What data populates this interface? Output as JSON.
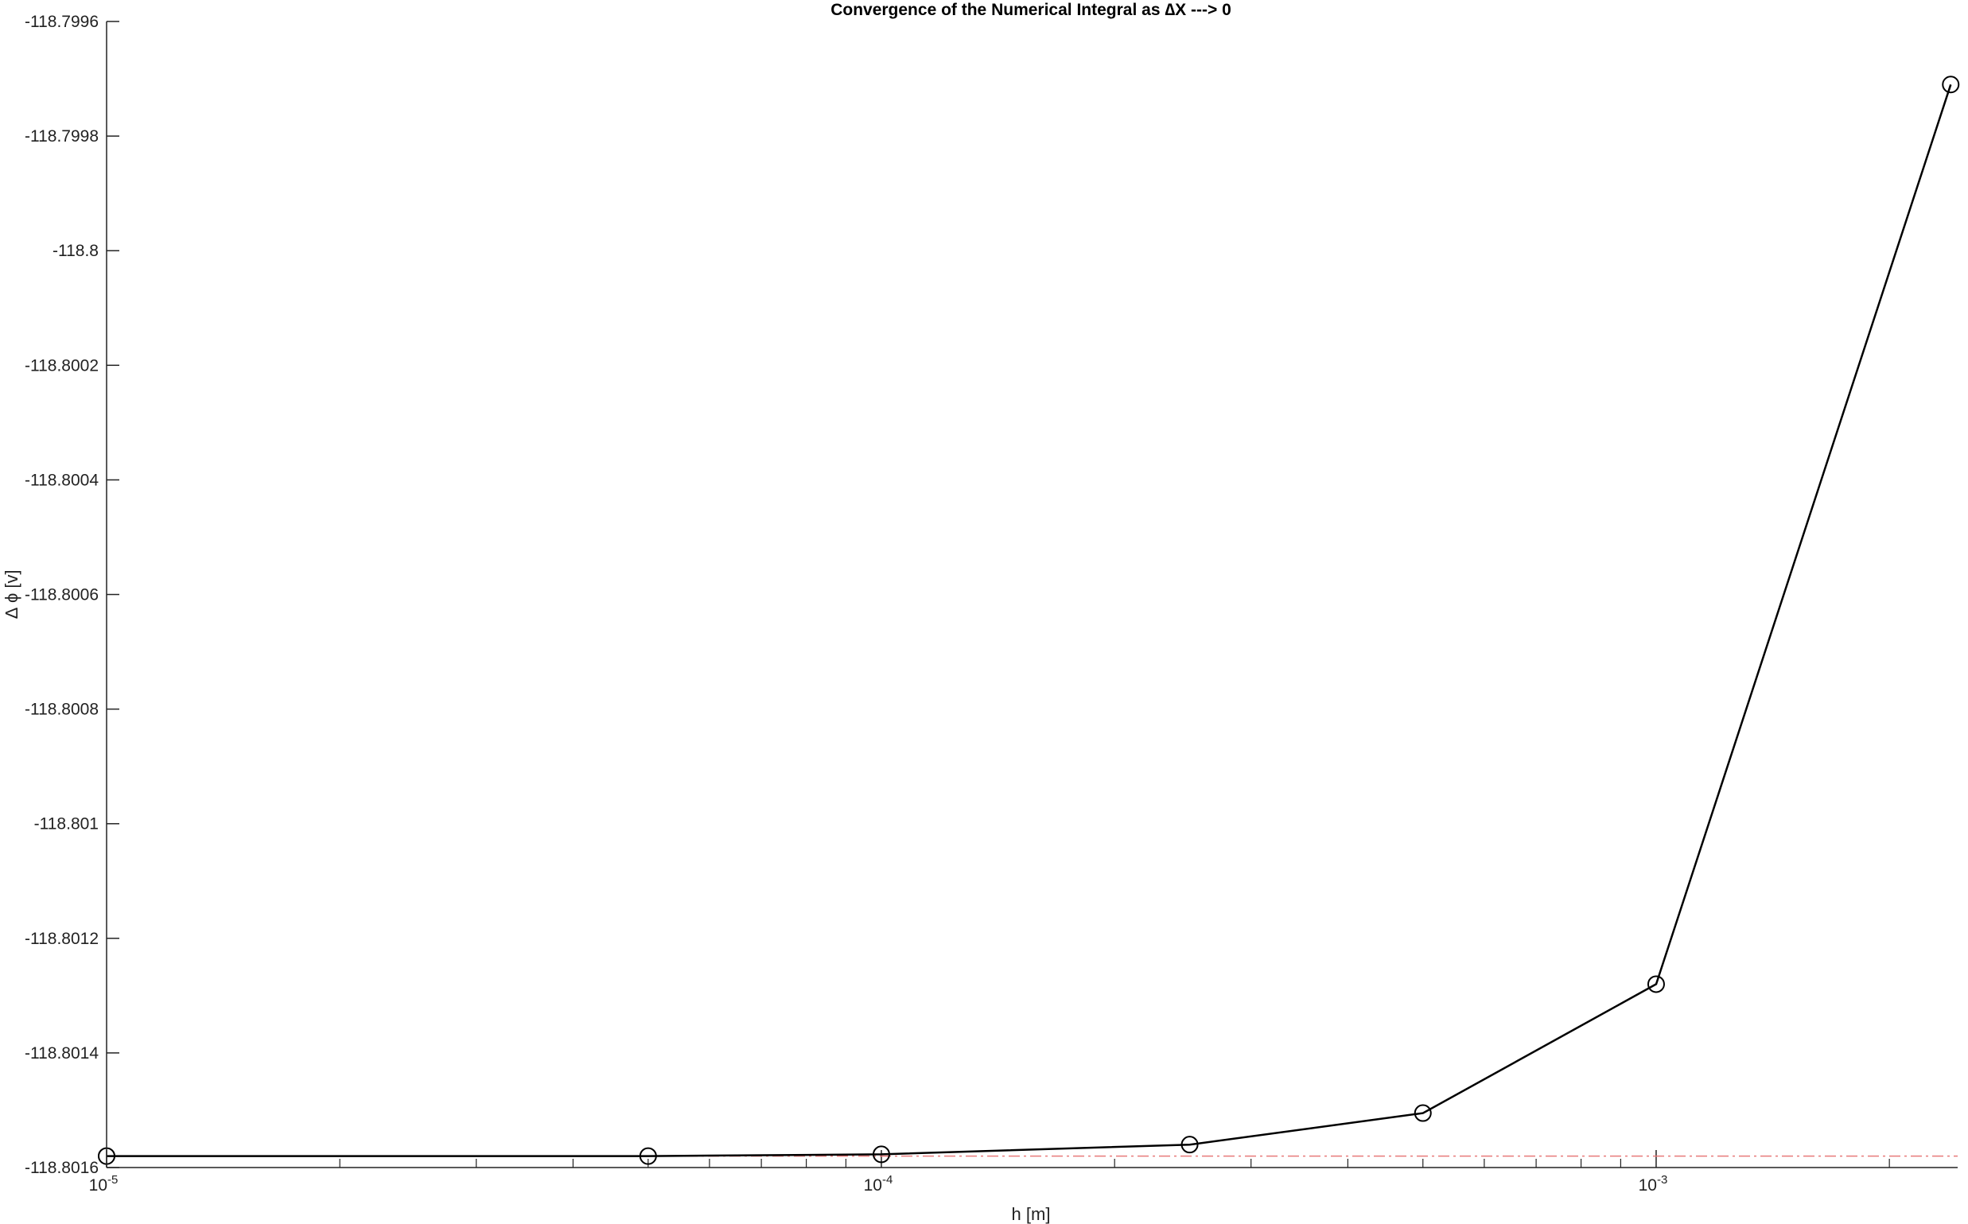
{
  "chart_data": {
    "type": "line",
    "title": "Convergence of the Numerical Integral as ∆X ---> 0",
    "xlabel": "h [m]",
    "ylabel": "∆ ϕ [v]",
    "x_scale": "log",
    "xlim": [
      1e-05,
      0.00245
    ],
    "ylim": [
      -118.8016,
      -118.7996
    ],
    "x_ticks": [
      {
        "value": 1e-05,
        "base": "10",
        "exp": "-5"
      },
      {
        "value": 0.0001,
        "base": "10",
        "exp": "-4"
      },
      {
        "value": 0.001,
        "base": "10",
        "exp": "-3"
      }
    ],
    "y_ticks": [
      {
        "value": -118.7996,
        "label": "-118.7996"
      },
      {
        "value": -118.7998,
        "label": "-118.7998"
      },
      {
        "value": -118.8,
        "label": "-118.8"
      },
      {
        "value": -118.8002,
        "label": "-118.8002"
      },
      {
        "value": -118.8004,
        "label": "-118.8004"
      },
      {
        "value": -118.8006,
        "label": "-118.8006"
      },
      {
        "value": -118.8008,
        "label": "-118.8008"
      },
      {
        "value": -118.801,
        "label": "-118.801"
      },
      {
        "value": -118.8012,
        "label": "-118.8012"
      },
      {
        "value": -118.8014,
        "label": "-118.8014"
      },
      {
        "value": -118.8016,
        "label": "-118.8016"
      }
    ],
    "grid": false,
    "series": [
      {
        "color": "#000000",
        "marker": "circle",
        "x": [
          1e-05,
          5e-05,
          0.0001,
          0.00025,
          0.0005,
          0.001,
          0.0024
        ],
        "y": [
          -118.80158,
          -118.80158,
          -118.801577,
          -118.80156,
          -118.801505,
          -118.80128,
          -118.79971
        ]
      }
    ],
    "reference_line": {
      "y": -118.80158,
      "color": "#e87a7a",
      "style": "dash-dot"
    }
  }
}
